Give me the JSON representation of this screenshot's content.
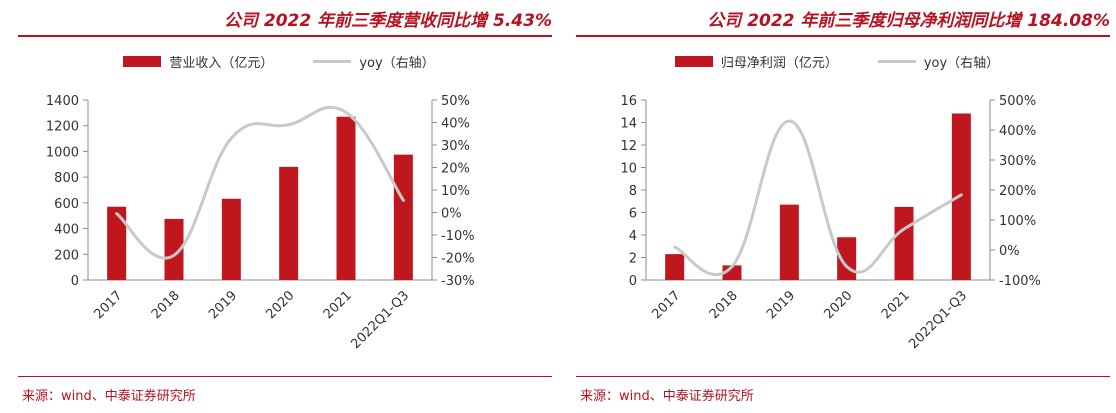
{
  "charts": [
    {
      "title": "公司 2022 年前三季度营收同比增 5.43%",
      "source": "来源：wind、中泰证券研究所"
    },
    {
      "title": "公司 2022 年前三季度归母净利润同比增 184.08%",
      "source": "来源：wind、中泰证券研究所"
    }
  ],
  "chart_data": [
    {
      "type": "bar",
      "categories": [
        "2017",
        "2018",
        "2019",
        "2020",
        "2021",
        "2022Q1-Q3"
      ],
      "series": [
        {
          "name": "营业收入（亿元）",
          "type": "bar",
          "axis": "left",
          "color": "#c0171f",
          "values": [
            570,
            475,
            632,
            880,
            1270,
            975
          ]
        },
        {
          "name": "yoy（右轴）",
          "type": "line",
          "axis": "right",
          "color": "#c9c9c9",
          "values": [
            -0.5,
            -19.0,
            33.0,
            39.0,
            44.5,
            5.4
          ]
        }
      ],
      "y_left": {
        "min": 0,
        "max": 1400,
        "step": 200,
        "ticks": [
          "0",
          "200",
          "400",
          "600",
          "800",
          "1000",
          "1200",
          "1400"
        ]
      },
      "y_right": {
        "min": -30,
        "max": 50,
        "step": 10,
        "ticks": [
          "-30%",
          "-20%",
          "-10%",
          "0%",
          "10%",
          "20%",
          "30%",
          "40%",
          "50%"
        ]
      },
      "legend": "top-center",
      "grid": false
    },
    {
      "type": "bar",
      "categories": [
        "2017",
        "2018",
        "2019",
        "2020",
        "2021",
        "2022Q1-Q3"
      ],
      "series": [
        {
          "name": "归母净利润（亿元）",
          "type": "bar",
          "axis": "left",
          "color": "#c0171f",
          "values": [
            2.3,
            1.3,
            6.7,
            3.8,
            6.5,
            14.8
          ]
        },
        {
          "name": "yoy（右轴）",
          "type": "line",
          "axis": "right",
          "color": "#c9c9c9",
          "values": [
            10,
            -55,
            430,
            -55,
            70,
            184
          ]
        }
      ],
      "y_left": {
        "min": 0,
        "max": 16,
        "step": 2,
        "ticks": [
          "0",
          "2",
          "4",
          "6",
          "8",
          "10",
          "12",
          "14",
          "16"
        ]
      },
      "y_right": {
        "min": -100,
        "max": 500,
        "step": 100,
        "ticks": [
          "-100%",
          "0%",
          "100%",
          "200%",
          "300%",
          "400%",
          "500%"
        ]
      },
      "legend": "top-center",
      "grid": false
    }
  ]
}
